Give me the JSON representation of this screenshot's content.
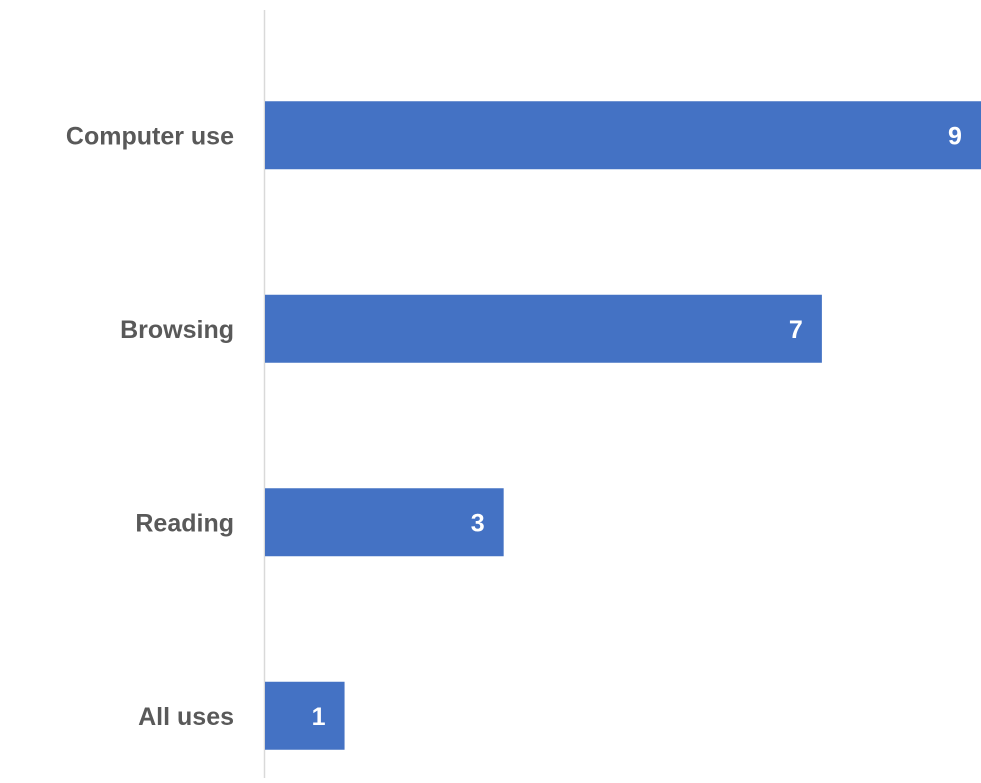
{
  "chart_data": {
    "type": "bar",
    "orientation": "horizontal",
    "categories": [
      "Computer use",
      "Browsing",
      "Reading",
      "All uses"
    ],
    "values": [
      9,
      7,
      3,
      1
    ],
    "xlim": [
      0,
      9
    ],
    "title": "",
    "xlabel": "",
    "ylabel": "",
    "grid": false,
    "legend": "none",
    "data_labels": true
  },
  "colors": {
    "bar": "#4472c4",
    "category_label": "#595959",
    "value_label": "#ffffff",
    "axis_line": "#d9d9d9"
  }
}
